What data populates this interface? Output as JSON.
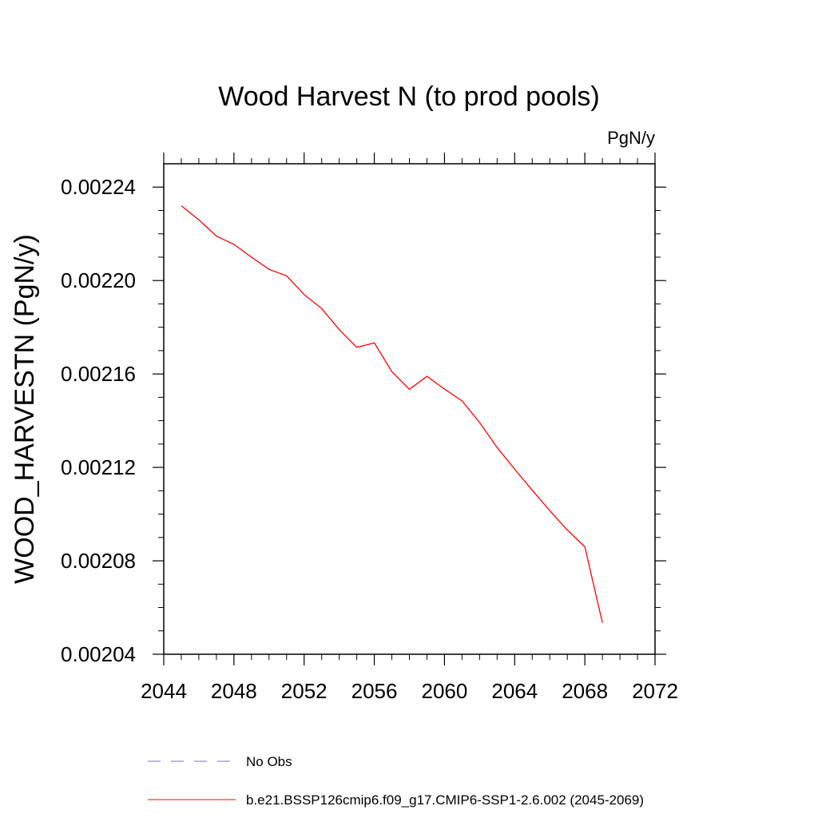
{
  "chart_data": {
    "type": "line",
    "title": "Wood Harvest N (to prod pools)",
    "units": "PgN/y",
    "xlabel": "",
    "ylabel": "WOOD_HARVESTN  (PgN/y)",
    "xlim": [
      2044,
      2072
    ],
    "ylim": [
      0.00204,
      0.00225
    ],
    "xticks": [
      2044,
      2048,
      2052,
      2056,
      2060,
      2064,
      2068,
      2072
    ],
    "xtick_labels": [
      "2044",
      "2048",
      "2052",
      "2056",
      "2060",
      "2064",
      "2068",
      "2072"
    ],
    "yticks": [
      0.00204,
      0.00208,
      0.00212,
      0.00216,
      0.0022,
      0.00224
    ],
    "ytick_labels": [
      "0.00204",
      "0.00208",
      "0.00212",
      "0.00216",
      "0.00220",
      "0.00224"
    ],
    "grid": false,
    "legend_position": "bottom",
    "series": [
      {
        "name": "b.e21.BSSP126cmip6.f09_g17.CMIP6-SSP1-2.6.002 (2045-2069)",
        "color": "#ff0000",
        "style": "solid",
        "x": [
          2045,
          2046,
          2047,
          2048,
          2049,
          2050,
          2051,
          2052,
          2053,
          2054,
          2055,
          2056,
          2057,
          2058,
          2059,
          2060,
          2061,
          2062,
          2063,
          2064,
          2065,
          2066,
          2067,
          2068,
          2069
        ],
        "y": [
          0.002232,
          0.002226,
          0.002219,
          0.0022155,
          0.00221,
          0.0022048,
          0.002202,
          0.002194,
          0.002188,
          0.002179,
          0.0021714,
          0.0021733,
          0.002161,
          0.0021534,
          0.002159,
          0.0021535,
          0.0021485,
          0.0021392,
          0.0021285,
          0.0021192,
          0.0021102,
          0.0021015,
          0.0020932,
          0.002086,
          0.0020535
        ]
      }
    ],
    "legend": [
      {
        "label": "No Obs",
        "color": "#7b6fb8",
        "style": "dashed"
      },
      {
        "label": "b.e21.BSSP126cmip6.f09_g17.CMIP6-SSP1-2.6.002 (2045-2069)",
        "color": "#ff0000",
        "style": "solid"
      }
    ]
  }
}
